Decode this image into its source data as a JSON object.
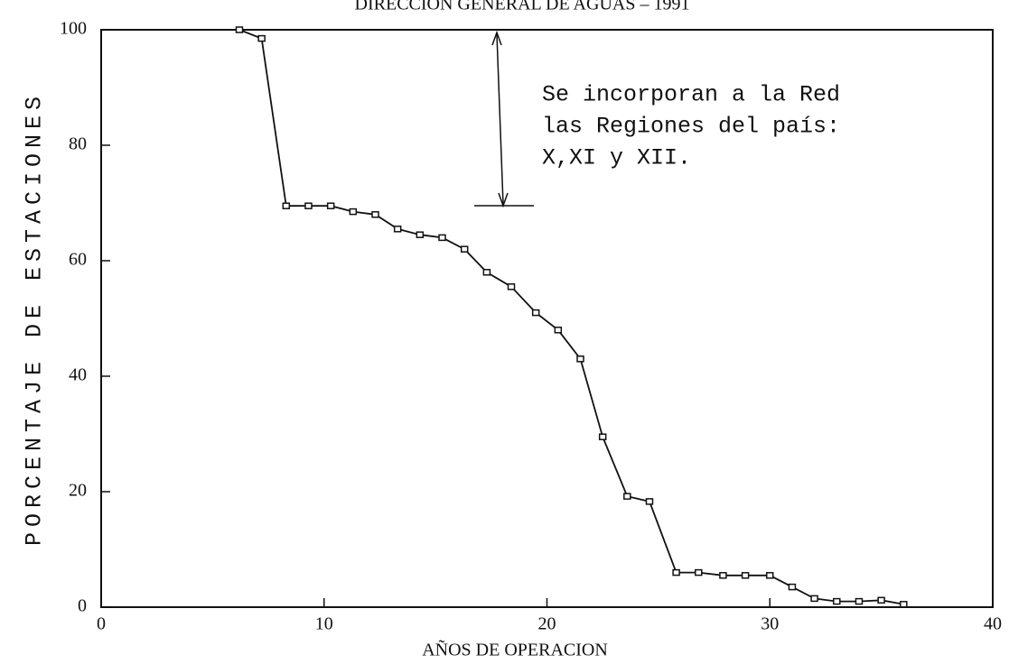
{
  "chart_data": {
    "type": "line",
    "title": "DIRECCION GENERAL DE AGUAS – 1991",
    "xlabel": "AÑOS DE OPERACION",
    "ylabel": "PORCENTAJE DE ESTACIONES",
    "annotation": [
      "Se incorporan a la Red",
      "las Regiones del país:",
      "X,XI y XII."
    ],
    "x": [
      6.2,
      7.2,
      8.3,
      9.3,
      10.3,
      11.3,
      12.3,
      13.3,
      14.3,
      15.3,
      16.3,
      17.3,
      18.4,
      19.5,
      20.5,
      21.5,
      22.5,
      23.6,
      24.6,
      25.8,
      26.8,
      27.9,
      28.9,
      30,
      31,
      32,
      33,
      34,
      35,
      36
    ],
    "series": [
      {
        "name": "Porcentaje",
        "color": "#111111",
        "values": [
          100,
          98.5,
          69.5,
          69.5,
          69.5,
          68.5,
          68,
          65.5,
          64.5,
          64,
          62,
          58,
          55.5,
          51,
          48,
          43,
          29.5,
          19.2,
          18.3,
          6,
          6,
          5.5,
          5.5,
          5.5,
          3.5,
          1.5,
          1,
          1,
          1.2,
          0.5
        ]
      }
    ],
    "xlim": [
      0,
      40
    ],
    "xticks": [
      0,
      10,
      20,
      30,
      40
    ],
    "ylim": [
      0,
      100
    ],
    "yticks": [
      0,
      20,
      40,
      60,
      80,
      100
    ]
  }
}
